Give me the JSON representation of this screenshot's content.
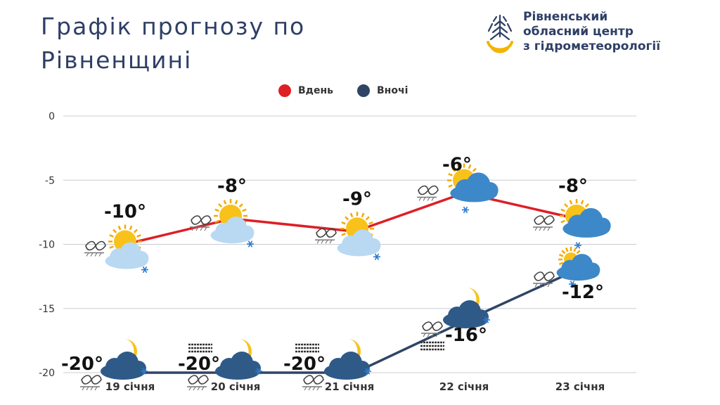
{
  "title_line1": "Графік прогнозу по",
  "title_line2": "Рівненщині",
  "org": {
    "line1": "Рівненський",
    "line2": "обласний центр",
    "line3": "з гідрометеорології"
  },
  "chart_data": {
    "type": "line",
    "categories": [
      "19 січня",
      "20 січня",
      "21 січня",
      "22 січня",
      "23 січня"
    ],
    "series": [
      {
        "name": "Вдень",
        "color": "#dd1f26",
        "values": [
          -10,
          -8,
          -9,
          -6,
          -8
        ],
        "labels": [
          "-10°",
          "-8°",
          "-9°",
          "-6°",
          "-8°"
        ]
      },
      {
        "name": "Вночі",
        "color": "#2e4566",
        "values": [
          -20,
          -20,
          -20,
          -16,
          -12
        ],
        "labels": [
          "-20°",
          "-20°",
          "-20°",
          "-16°",
          "-12°"
        ]
      }
    ],
    "yticks": [
      0,
      -5,
      -10,
      -15,
      -20
    ],
    "ylim": [
      -20,
      0
    ],
    "grid": true,
    "legend": "top-center",
    "icons": {
      "day": [
        "sun-cloud-snow-icon",
        "sun-cloud-snow-icon",
        "sun-cloud-snow-icon",
        "sun-cloud-snow-icon",
        "sun-cloud-snow-icon"
      ],
      "night": [
        "moon-cloud-snow-icon",
        "moon-cloud-snow-icon",
        "moon-cloud-snow-icon",
        "moon-cloud-snow-icon",
        "sun-cloud-snow-icon"
      ],
      "wind_day": [
        "wind-icon",
        "wind-icon",
        "wind-icon",
        "wind-icon",
        "wind-icon"
      ],
      "wind_night": [
        "wind-icon",
        "wind-icon",
        "wind-icon",
        "wind-icon",
        "wind-icon"
      ],
      "fog_night": [
        false,
        true,
        true,
        true,
        false
      ]
    }
  }
}
